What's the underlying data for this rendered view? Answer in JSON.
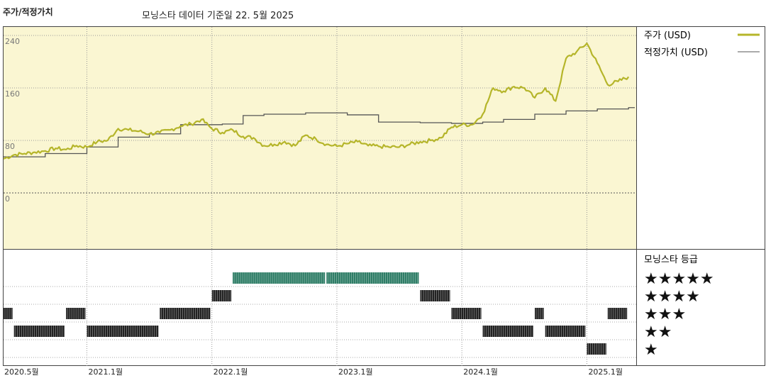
{
  "header": {
    "title": "주가/적정가치",
    "subtitle": "모닝스타 데이터 기준일 22. 5월 2025"
  },
  "legend": {
    "price": "주가 (USD)",
    "fair_value": "적정가치 (USD)",
    "rating_title": "모닝스타 등급"
  },
  "colors": {
    "price_line": "#b5b52a",
    "fair_value_line": "#555555",
    "plot_bg": "#faf6d2",
    "five_star": "#2e7d66",
    "rating_bar": "#222222"
  },
  "chart_data": [
    {
      "type": "line",
      "title": "",
      "ylim": [
        0,
        240
      ],
      "y_ticks": [
        "240",
        "160",
        "80",
        "0"
      ],
      "x_ticks": [
        "2020.5월",
        "2021.1월",
        "2022.1월",
        "2023.1월",
        "2024.1월",
        "2025.1월"
      ],
      "grid": true,
      "legend_position": "right",
      "series": [
        {
          "name": "주가 (USD)",
          "points": [
            [
              "2020-05",
              52
            ],
            [
              "2020-06",
              58
            ],
            [
              "2020-07",
              60
            ],
            [
              "2020-08",
              62
            ],
            [
              "2020-09",
              64
            ],
            [
              "2020-10",
              68
            ],
            [
              "2020-11",
              66
            ],
            [
              "2020-12",
              72
            ],
            [
              "2021-01",
              70
            ],
            [
              "2021-02",
              78
            ],
            [
              "2021-03",
              80
            ],
            [
              "2021-04",
              98
            ],
            [
              "2021-05",
              96
            ],
            [
              "2021-06",
              94
            ],
            [
              "2021-07",
              90
            ],
            [
              "2021-08",
              92
            ],
            [
              "2021-09",
              96
            ],
            [
              "2021-10",
              102
            ],
            [
              "2021-11",
              105
            ],
            [
              "2021-12",
              112
            ],
            [
              "2022-01",
              98
            ],
            [
              "2022-02",
              92
            ],
            [
              "2022-03",
              96
            ],
            [
              "2022-04",
              86
            ],
            [
              "2022-05",
              84
            ],
            [
              "2022-06",
              72
            ],
            [
              "2022-07",
              74
            ],
            [
              "2022-08",
              78
            ],
            [
              "2022-09",
              72
            ],
            [
              "2022-10",
              88
            ],
            [
              "2022-11",
              82
            ],
            [
              "2022-12",
              74
            ],
            [
              "2023-01",
              71
            ],
            [
              "2023-02",
              75
            ],
            [
              "2023-03",
              78
            ],
            [
              "2023-04",
              72
            ],
            [
              "2023-05",
              71
            ],
            [
              "2023-06",
              70
            ],
            [
              "2023-07",
              70
            ],
            [
              "2023-08",
              74
            ],
            [
              "2023-09",
              78
            ],
            [
              "2023-10",
              80
            ],
            [
              "2023-11",
              84
            ],
            [
              "2023-12",
              100
            ],
            [
              "2024-01",
              104
            ],
            [
              "2024-02",
              104
            ],
            [
              "2024-03",
              120
            ],
            [
              "2024-04",
              160
            ],
            [
              "2024-05",
              155
            ],
            [
              "2024-06",
              162
            ],
            [
              "2024-07",
              160
            ],
            [
              "2024-08",
              145
            ],
            [
              "2024-09",
              160
            ],
            [
              "2024-10",
              140
            ],
            [
              "2024-11",
              205
            ],
            [
              "2024-12",
              215
            ],
            [
              "2025-01",
              228
            ],
            [
              "2025-02",
              198
            ],
            [
              "2025-03",
              165
            ],
            [
              "2025-04",
              170
            ],
            [
              "2025-05",
              177
            ]
          ]
        },
        {
          "name": "적정가치 (USD)",
          "points": [
            [
              "2020-05",
              55
            ],
            [
              "2020-09",
              60
            ],
            [
              "2021-01",
              70
            ],
            [
              "2021-04",
              85
            ],
            [
              "2021-07",
              90
            ],
            [
              "2021-10",
              104
            ],
            [
              "2022-02",
              105
            ],
            [
              "2022-04",
              118
            ],
            [
              "2022-06",
              120
            ],
            [
              "2022-10",
              122
            ],
            [
              "2023-02",
              119
            ],
            [
              "2023-05",
              108
            ],
            [
              "2023-09",
              107
            ],
            [
              "2023-12",
              106
            ],
            [
              "2024-03",
              108
            ],
            [
              "2024-05",
              112
            ],
            [
              "2024-08",
              120
            ],
            [
              "2024-11",
              125
            ],
            [
              "2025-02",
              128
            ],
            [
              "2025-05",
              130
            ]
          ]
        }
      ]
    },
    {
      "type": "table",
      "title": "모닝스타 등급",
      "rating_labels": [
        "★★★★★",
        "★★★★",
        "★★★",
        "★★",
        "★"
      ],
      "periods": [
        {
          "rating": 3,
          "start": "2020-05",
          "end": "2020-06"
        },
        {
          "rating": 2,
          "start": "2020-06",
          "end": "2020-11"
        },
        {
          "rating": 3,
          "start": "2020-11",
          "end": "2021-01"
        },
        {
          "rating": 2,
          "start": "2021-01",
          "end": "2021-08"
        },
        {
          "rating": 3,
          "start": "2021-08",
          "end": "2022-01"
        },
        {
          "rating": 4,
          "start": "2022-01",
          "end": "2022-03"
        },
        {
          "rating": 5,
          "start": "2022-03",
          "end": "2022-12"
        },
        {
          "rating": 5,
          "start": "2022-12",
          "end": "2023-09"
        },
        {
          "rating": 4,
          "start": "2023-09",
          "end": "2023-12"
        },
        {
          "rating": 3,
          "start": "2023-12",
          "end": "2024-03"
        },
        {
          "rating": 2,
          "start": "2024-03",
          "end": "2024-08"
        },
        {
          "rating": 3,
          "start": "2024-08",
          "end": "2024-09"
        },
        {
          "rating": 2,
          "start": "2024-09",
          "end": "2025-01"
        },
        {
          "rating": 1,
          "start": "2025-01",
          "end": "2025-03"
        },
        {
          "rating": 3,
          "start": "2025-03",
          "end": "2025-05"
        }
      ]
    }
  ]
}
